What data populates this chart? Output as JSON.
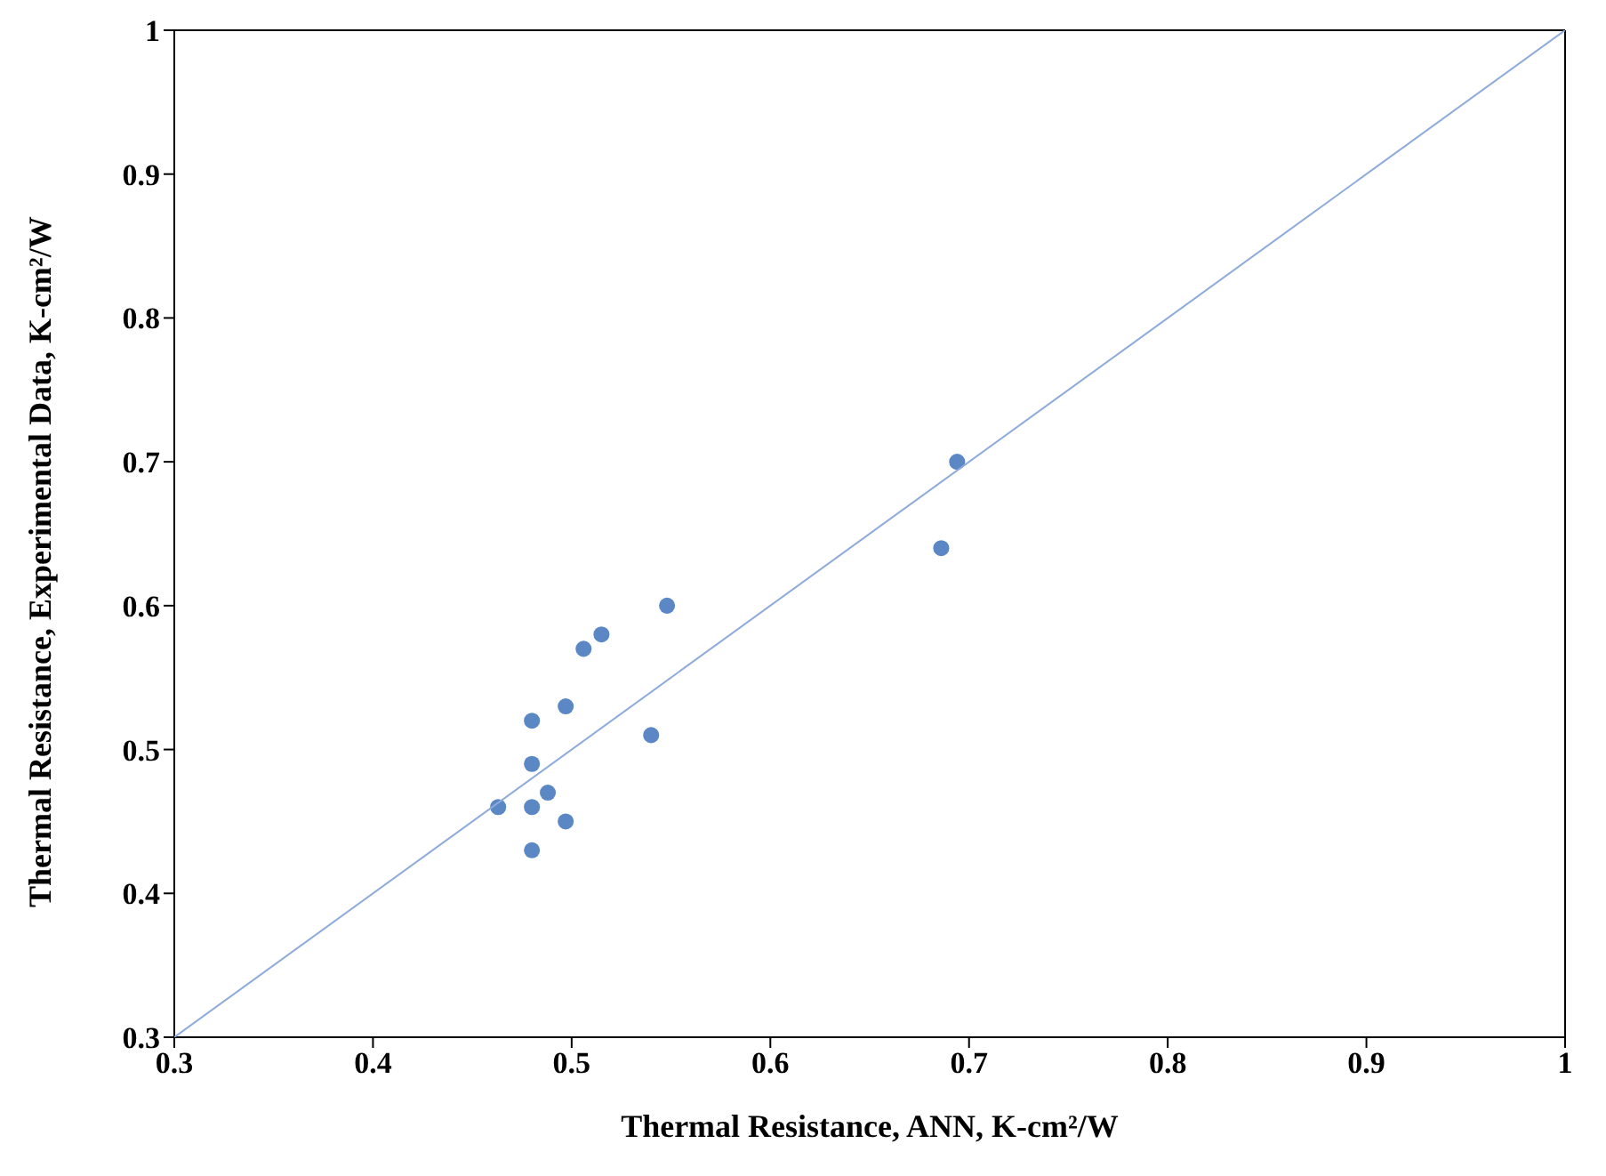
{
  "chart_data": {
    "type": "scatter",
    "xlabel": "Thermal Resistance, ANN, K-cm²/W",
    "ylabel": "Thermal Resistance, Experimental Data, K-cm²/W",
    "xlim": [
      0.3,
      1
    ],
    "ylim": [
      0.3,
      1
    ],
    "xticks": [
      0.3,
      0.4,
      0.5,
      0.6,
      0.7,
      0.8,
      0.9,
      1
    ],
    "yticks": [
      0.3,
      0.4,
      0.5,
      0.6,
      0.7,
      0.8,
      0.9,
      1
    ],
    "grid": false,
    "series": [
      {
        "marker": "circle",
        "color": "#5b87c5",
        "x": [
          0.694,
          0.686,
          0.548,
          0.515,
          0.506,
          0.497,
          0.54,
          0.48,
          0.48,
          0.488,
          0.463,
          0.48,
          0.497,
          0.48
        ],
        "values": [
          0.7,
          0.64,
          0.6,
          0.58,
          0.57,
          0.53,
          0.51,
          0.52,
          0.49,
          0.47,
          0.46,
          0.46,
          0.45,
          0.43
        ]
      },
      {
        "type": "line",
        "marker": "none",
        "color": "#8eaadb",
        "line_style": "solid",
        "x": [
          0.3,
          1
        ],
        "values": [
          0.3,
          1
        ]
      }
    ]
  }
}
